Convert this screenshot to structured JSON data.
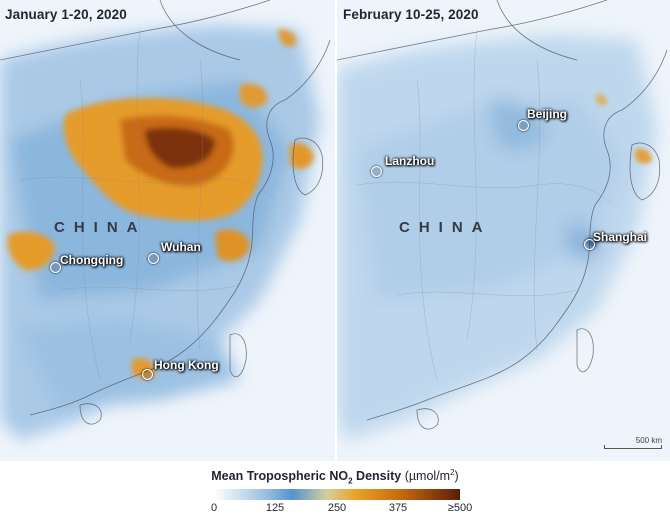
{
  "panels": {
    "left": {
      "title": "January 1-20, 2020",
      "country_label": "CHINA",
      "cities": {
        "chongqing": "Chongqing",
        "wuhan": "Wuhan",
        "hong_kong": "Hong Kong"
      }
    },
    "right": {
      "title": "February 10-25, 2020",
      "country_label": "CHINA",
      "cities": {
        "beijing": "Beijing",
        "lanzhou": "Lanzhou",
        "shanghai": "Shanghai"
      },
      "scale_label": "500 km"
    }
  },
  "legend": {
    "title_prefix": "Mean Tropospheric NO",
    "title_sub": "2",
    "title_suffix": " Density",
    "unit_prefix": "(µmol/m",
    "unit_sup": "2",
    "unit_suffix": ")",
    "ticks": [
      "0",
      "125",
      "250",
      "375",
      "≥500"
    ],
    "tick_values": [
      0,
      125,
      250,
      375,
      500
    ],
    "colors": [
      "#ffffff",
      "#5594cf",
      "#e9a126",
      "#5a1e06"
    ]
  }
}
